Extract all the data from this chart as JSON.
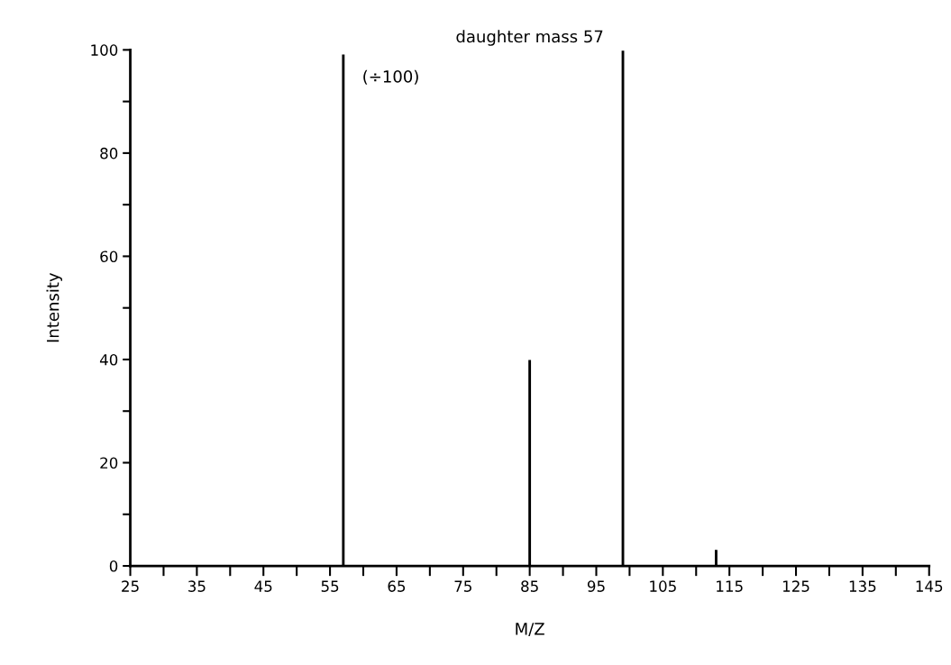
{
  "chart_data": {
    "type": "bar",
    "title": "daughter mass 57",
    "xlabel": "M/Z",
    "ylabel": "Intensity",
    "x": [
      57,
      85,
      99,
      113
    ],
    "values": [
      99,
      39.8,
      99.7,
      3
    ],
    "color": "#000000",
    "annotations": [
      {
        "text": "(÷100)",
        "x": 57,
        "y": 99
      }
    ],
    "xlim": [
      25,
      145
    ],
    "xticks": [
      25,
      {
        "value": 30,
        "label": null
      },
      35,
      {
        "value": 40,
        "label": null
      },
      45,
      {
        "value": 50,
        "label": null
      },
      55,
      {
        "value": 60,
        "label": null
      },
      65,
      {
        "value": 70,
        "label": null
      },
      75,
      {
        "value": 80,
        "label": null
      },
      85,
      {
        "value": 90,
        "label": null
      },
      95,
      {
        "value": 100,
        "label": null
      },
      105,
      {
        "value": 110,
        "label": null
      },
      115,
      {
        "value": 120,
        "label": null
      },
      125,
      {
        "value": 130,
        "label": null
      },
      135,
      {
        "value": 140,
        "label": null
      },
      145
    ],
    "ylim": [
      0,
      100
    ],
    "yticks": [
      0,
      {
        "value": 10,
        "label": null
      },
      20,
      {
        "value": 30,
        "label": null
      },
      40,
      {
        "value": 50,
        "label": null
      },
      60,
      {
        "value": 70,
        "label": null
      },
      80,
      {
        "value": 90,
        "label": null
      },
      100
    ],
    "grid": false,
    "legend": false
  }
}
